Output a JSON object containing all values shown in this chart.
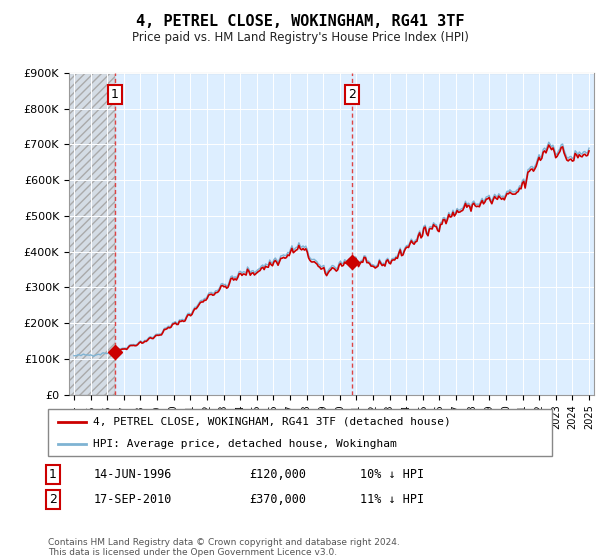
{
  "title": "4, PETREL CLOSE, WOKINGHAM, RG41 3TF",
  "subtitle": "Price paid vs. HM Land Registry's House Price Index (HPI)",
  "ylim": [
    0,
    900000
  ],
  "yticks": [
    0,
    100000,
    200000,
    300000,
    400000,
    500000,
    600000,
    700000,
    800000,
    900000
  ],
  "ytick_labels": [
    "£0",
    "£100K",
    "£200K",
    "£300K",
    "£400K",
    "£500K",
    "£600K",
    "£700K",
    "£800K",
    "£900K"
  ],
  "hpi_color": "#7fb3d3",
  "price_color": "#cc0000",
  "vline_color": "#dd4444",
  "purchase1_date": 1996.45,
  "purchase1_price": 120000,
  "purchase2_date": 2010.71,
  "purchase2_price": 370000,
  "legend_property": "4, PETREL CLOSE, WOKINGHAM, RG41 3TF (detached house)",
  "legend_hpi": "HPI: Average price, detached house, Wokingham",
  "annotation1_date": "14-JUN-1996",
  "annotation1_price": "£120,000",
  "annotation1_hpi": "10% ↓ HPI",
  "annotation2_date": "17-SEP-2010",
  "annotation2_price": "£370,000",
  "annotation2_hpi": "11% ↓ HPI",
  "footer": "Contains HM Land Registry data © Crown copyright and database right 2024.\nThis data is licensed under the Open Government Licence v3.0.",
  "chart_bg": "#ddeeff",
  "hatch_bg": "#cccccc",
  "xlim_left": 1993.7,
  "xlim_right": 2025.3
}
